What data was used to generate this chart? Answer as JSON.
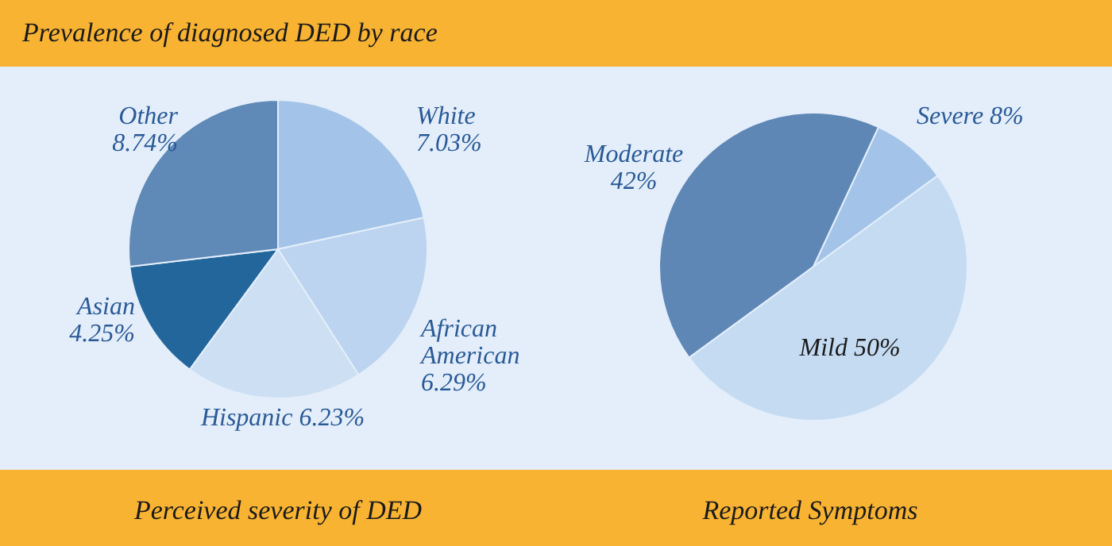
{
  "chart_data": [
    {
      "type": "pie",
      "title": "Prevalence of diagnosed DED by race",
      "categories": [
        "White",
        "African American",
        "Hispanic",
        "Asian",
        "Other"
      ],
      "values": [
        7.03,
        6.29,
        6.23,
        4.25,
        8.74
      ],
      "value_labels": [
        "7.03%",
        "6.29%",
        "6.23%",
        "4.25%",
        "8.74%"
      ],
      "colors": [
        "#a3c4e8",
        "#bcd4ef",
        "#cde0f3",
        "#23669c",
        "#5f89b6"
      ],
      "annotations": [
        "Perceived severity of DED"
      ]
    },
    {
      "type": "pie",
      "title": "Reported Symptoms",
      "categories": [
        "Severe",
        "Mild",
        "Moderate"
      ],
      "values": [
        8,
        50,
        42
      ],
      "value_labels": [
        "8%",
        "50%",
        "42%"
      ],
      "colors": [
        "#a3c4e8",
        "#c5dbf2",
        "#5f87b6"
      ]
    }
  ]
}
